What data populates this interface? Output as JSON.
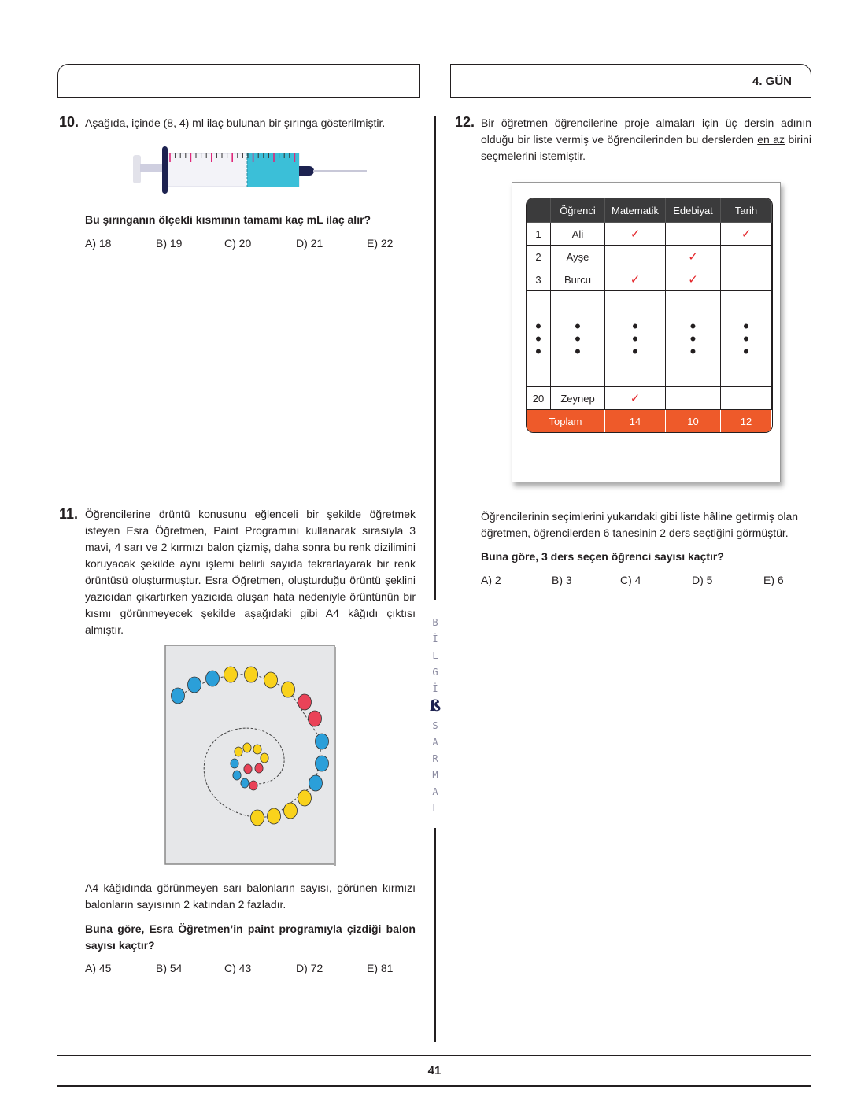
{
  "header": {
    "day_label": "4. GÜN"
  },
  "q10": {
    "number": "10.",
    "text": "Aşağıda, içinde (8, 4) ml ilaç bulunan bir şırınga gösterilmiştir.",
    "question": "Bu şırınganın ölçekli kısmının tamamı kaç mL ilaç alır?",
    "options": [
      "A) 18",
      "B) 19",
      "C) 20",
      "D) 21",
      "E) 22"
    ]
  },
  "q11": {
    "number": "11.",
    "text": "Öğrencilerine örüntü konusunu eğlenceli bir şekilde öğretmek isteyen Esra Öğretmen, Paint Programını kullanarak sırasıyla 3 mavi, 4 sarı ve 2 kırmızı balon çizmiş, daha sonra bu renk dizilimini koruyacak şekilde aynı işlemi belirli sayıda tekrarlayarak bir renk örüntüsü oluşturmuştur. Esra Öğretmen, oluşturduğu örüntü şeklini yazıcıdan çıkartırken yazıcıda oluşan hata nedeniyle örüntünün bir kısmı görünmeyecek şekilde aşağıdaki gibi A4 kâğıdı çıktısı almıştır.",
    "text2": "A4 kâğıdında görünmeyen sarı balonların sayısı, görünen kırmızı balonların sayısının 2 katından 2 fazladır.",
    "question": "Buna göre, Esra Öğretmen’in paint programıyla çizdiği balon sayısı kaçtır?",
    "options": [
      "A) 45",
      "B) 54",
      "C) 43",
      "D) 72",
      "E) 81"
    ],
    "balloon_colors": {
      "blue": "#2b9fd9",
      "yellow": "#f9d21c",
      "red": "#ea4358"
    }
  },
  "q12": {
    "number": "12.",
    "text_a": "Bir öğretmen öğrencilerine proje almaları için üç dersin adının olduğu bir liste vermiş ve öğrencilerinden bu derslerden ",
    "text_underline": "en az",
    "text_b": " birini seçmelerini istemiştir.",
    "table": {
      "headers": [
        "",
        "Öğrenci",
        "Matematik",
        "Edebiyat",
        "Tarih"
      ],
      "rows": [
        [
          "1",
          "Ali",
          "✓",
          "",
          "✓"
        ],
        [
          "2",
          "Ayşe",
          "",
          "✓",
          ""
        ],
        [
          "3",
          "Burcu",
          "✓",
          "✓",
          ""
        ]
      ],
      "last_row": [
        "20",
        "Zeynep",
        "✓",
        "",
        ""
      ],
      "total_row": [
        "Toplam",
        "14",
        "10",
        "12"
      ]
    },
    "text2": "Öğrencilerinin seçimlerini yukarıdaki gibi liste hâline getirmiş olan öğretmen, öğrencilerden 6 tanesinin 2 ders seçtiğini görmüştür.",
    "question": "Buna göre, 3 ders seçen öğrenci sayısı kaçtır?",
    "options": [
      "A) 2",
      "B) 3",
      "C) 4",
      "D) 5",
      "E) 6"
    ]
  },
  "brand": {
    "letters_top": [
      "B",
      "İ",
      "L",
      "G",
      "İ"
    ],
    "letters_bottom": [
      "S",
      "A",
      "R",
      "M",
      "A",
      "L"
    ],
    "logo": "BS"
  },
  "footer": {
    "page_number": "41"
  }
}
